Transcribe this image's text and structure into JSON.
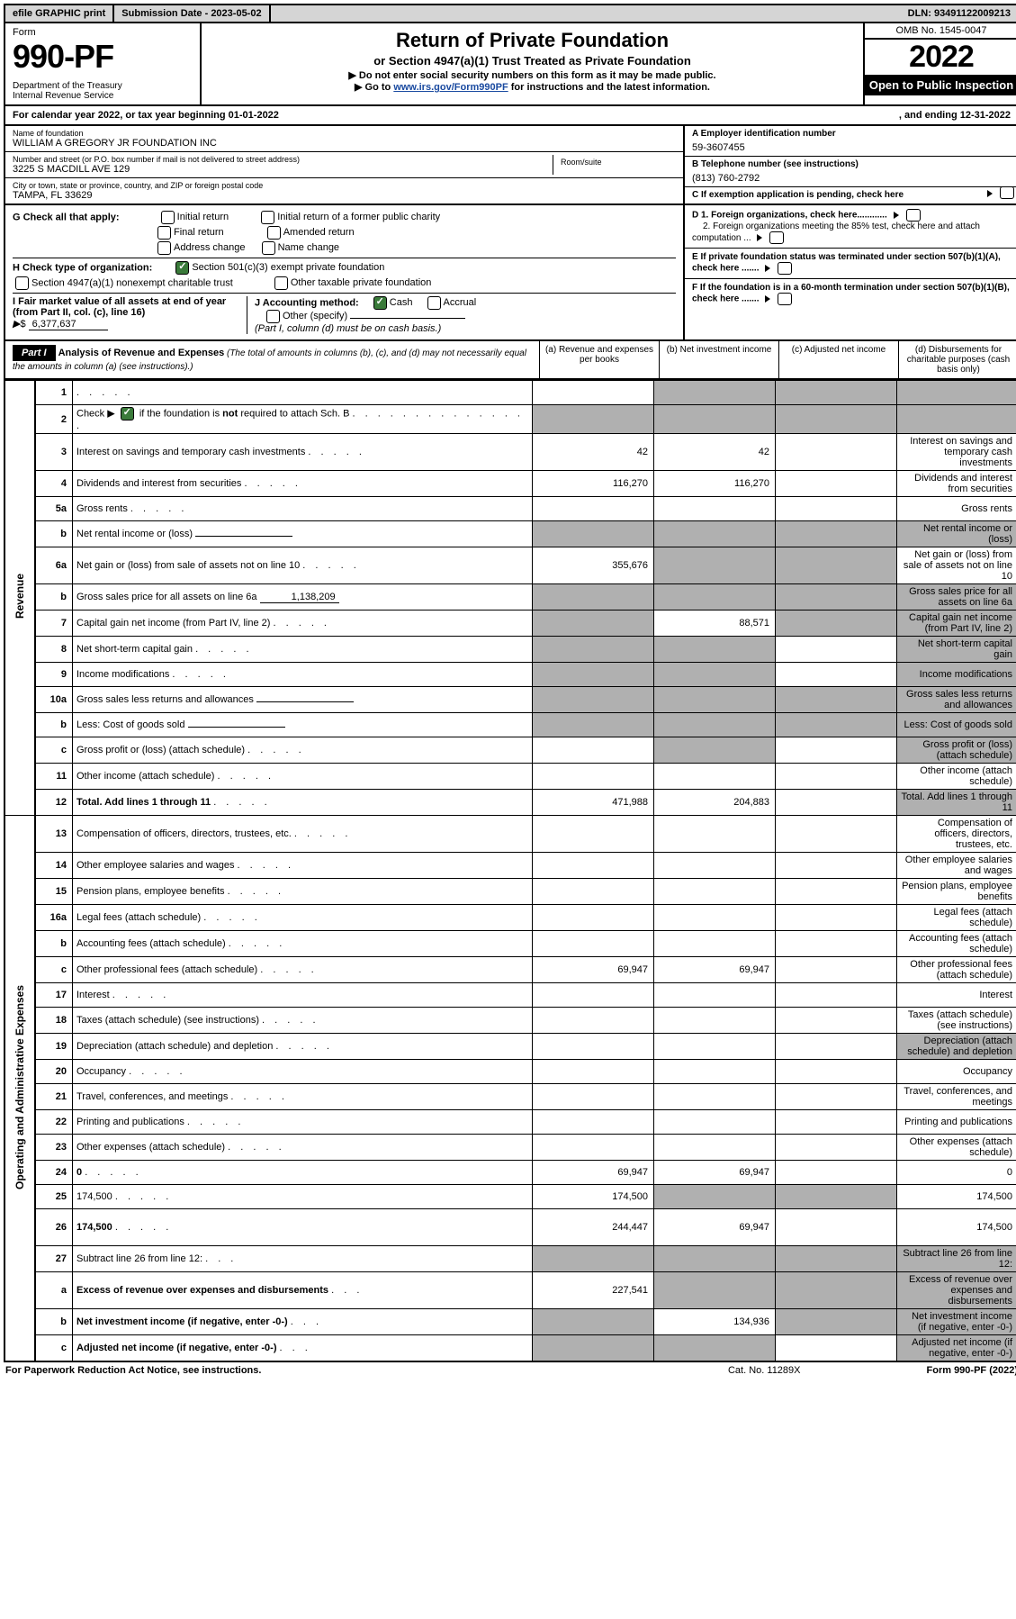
{
  "top": {
    "efile": "efile GRAPHIC print",
    "subdate_label": "Submission Date - 2023-05-02",
    "dln": "DLN: 93491122009213"
  },
  "header": {
    "form": "Form",
    "form_number": "990-PF",
    "dept": "Department of the Treasury\nInternal Revenue Service",
    "title": "Return of Private Foundation",
    "subtitle": "or Section 4947(a)(1) Trust Treated as Private Foundation",
    "note1": "▶ Do not enter social security numbers on this form as it may be made public.",
    "note2_prefix": "▶ Go to ",
    "note2_link": "www.irs.gov/Form990PF",
    "note2_suffix": " for instructions and the latest information.",
    "omb": "OMB No. 1545-0047",
    "year": "2022",
    "inspect": "Open to Public Inspection"
  },
  "calyear": {
    "begin": "For calendar year 2022, or tax year beginning 01-01-2022",
    "end": ", and ending 12-31-2022"
  },
  "entity": {
    "name_label": "Name of foundation",
    "name": "WILLIAM A GREGORY JR FOUNDATION INC",
    "street_label": "Number and street (or P.O. box number if mail is not delivered to street address)",
    "street": "3225 S MACDILL AVE 129",
    "room_label": "Room/suite",
    "city_label": "City or town, state or province, country, and ZIP or foreign postal code",
    "city": "TAMPA, FL  33629",
    "a_label": "A Employer identification number",
    "a": "59-3607455",
    "b_label": "B Telephone number (see instructions)",
    "b": "(813) 760-2792",
    "c_label": "C If exemption application is pending, check here"
  },
  "checks": {
    "G": "G Check all that apply:",
    "G_items": [
      "Initial return",
      "Initial return of a former public charity",
      "Final return",
      "Amended return",
      "Address change",
      "Name change"
    ],
    "H": "H Check type of organization:",
    "H_501c3": "Section 501(c)(3) exempt private foundation",
    "H_4947": "Section 4947(a)(1) nonexempt charitable trust",
    "H_other": "Other taxable private foundation",
    "I_label": "I Fair market value of all assets at end of year (from Part II, col. (c), line 16)",
    "I_val": "6,377,637",
    "J": "J Accounting method:",
    "J_cash": "Cash",
    "J_accrual": "Accrual",
    "J_other": "Other (specify)",
    "J_note": "(Part I, column (d) must be on cash basis.)",
    "D1": "D 1. Foreign organizations, check here............",
    "D2": "2. Foreign organizations meeting the 85% test, check here and attach computation ...",
    "E": "E  If private foundation status was terminated under section 507(b)(1)(A), check here .......",
    "F": "F  If the foundation is in a 60-month termination under section 507(b)(1)(B), check here ......."
  },
  "part1": {
    "label": "Part I",
    "title": "Analysis of Revenue and Expenses",
    "italic": " (The total of amounts in columns (b), (c), and (d) may not necessarily equal the amounts in column (a) (see instructions).)",
    "col_a": "(a)  Revenue and expenses per books",
    "col_b": "(b)  Net investment income",
    "col_c": "(c)  Adjusted net income",
    "col_d": "(d)  Disbursements for charitable purposes (cash basis only)"
  },
  "side_revenue": "Revenue",
  "side_expenses": "Operating and Administrative Expenses",
  "rows": [
    {
      "n": "1",
      "d": "",
      "a": "",
      "b": "",
      "c": "",
      "dshade": true,
      "cshade": true,
      "bshade": true
    },
    {
      "n": "2",
      "d": "",
      "a": "",
      "b": "",
      "c": "",
      "ashade": true,
      "bshade": true,
      "cshade": true,
      "dshade": true,
      "isCheck": true
    },
    {
      "n": "3",
      "d": "Interest on savings and temporary cash investments",
      "a": "42",
      "b": "42"
    },
    {
      "n": "4",
      "d": "Dividends and interest from securities",
      "a": "116,270",
      "b": "116,270"
    },
    {
      "n": "5a",
      "d": "Gross rents"
    },
    {
      "n": "b",
      "d": "Net rental income or (loss)",
      "ashade": true,
      "bshade": true,
      "cshade": true,
      "dshade": true,
      "inline": true
    },
    {
      "n": "6a",
      "d": "Net gain or (loss) from sale of assets not on line 10",
      "a": "355,676",
      "bshade": true,
      "cshade": true
    },
    {
      "n": "b",
      "d": "Gross sales price for all assets on line 6a",
      "inline_val": "1,138,209",
      "ashade": true,
      "bshade": true,
      "cshade": true,
      "dshade": true
    },
    {
      "n": "7",
      "d": "Capital gain net income (from Part IV, line 2)",
      "ashade": true,
      "b": "88,571",
      "cshade": true,
      "dshade": true
    },
    {
      "n": "8",
      "d": "Net short-term capital gain",
      "ashade": true,
      "bshade": true,
      "dshade": true
    },
    {
      "n": "9",
      "d": "Income modifications",
      "ashade": true,
      "bshade": true,
      "dshade": true
    },
    {
      "n": "10a",
      "d": "Gross sales less returns and allowances",
      "ashade": true,
      "bshade": true,
      "cshade": true,
      "dshade": true,
      "inline": true
    },
    {
      "n": "b",
      "d": "Less: Cost of goods sold",
      "ashade": true,
      "bshade": true,
      "cshade": true,
      "dshade": true,
      "inline": true
    },
    {
      "n": "c",
      "d": "Gross profit or (loss) (attach schedule)",
      "bshade": true,
      "dshade": true
    },
    {
      "n": "11",
      "d": "Other income (attach schedule)"
    },
    {
      "n": "12",
      "d": "Total. Add lines 1 through 11",
      "bold": true,
      "a": "471,988",
      "b": "204,883",
      "dshade": true
    }
  ],
  "exp_rows": [
    {
      "n": "13",
      "d": "Compensation of officers, directors, trustees, etc."
    },
    {
      "n": "14",
      "d": "Other employee salaries and wages"
    },
    {
      "n": "15",
      "d": "Pension plans, employee benefits"
    },
    {
      "n": "16a",
      "d": "Legal fees (attach schedule)"
    },
    {
      "n": "b",
      "d": "Accounting fees (attach schedule)"
    },
    {
      "n": "c",
      "d": "Other professional fees (attach schedule)",
      "a": "69,947",
      "b": "69,947"
    },
    {
      "n": "17",
      "d": "Interest"
    },
    {
      "n": "18",
      "d": "Taxes (attach schedule) (see instructions)"
    },
    {
      "n": "19",
      "d": "Depreciation (attach schedule) and depletion",
      "dshade": true
    },
    {
      "n": "20",
      "d": "Occupancy"
    },
    {
      "n": "21",
      "d": "Travel, conferences, and meetings"
    },
    {
      "n": "22",
      "d": "Printing and publications"
    },
    {
      "n": "23",
      "d": "Other expenses (attach schedule)"
    },
    {
      "n": "24",
      "d": "0",
      "bold": true,
      "a": "69,947",
      "b": "69,947"
    },
    {
      "n": "25",
      "d": "174,500",
      "a": "174,500",
      "bshade": true,
      "cshade": true
    },
    {
      "n": "26",
      "d": "174,500",
      "bold": true,
      "a": "244,447",
      "b": "69,947",
      "tall": true
    }
  ],
  "net_rows": [
    {
      "n": "27",
      "d": "Subtract line 26 from line 12:",
      "ashade": true,
      "bshade": true,
      "cshade": true,
      "dshade": true
    },
    {
      "n": "a",
      "d": "Excess of revenue over expenses and disbursements",
      "bold": true,
      "a": "227,541",
      "bshade": true,
      "cshade": true,
      "dshade": true
    },
    {
      "n": "b",
      "d": "Net investment income (if negative, enter -0-)",
      "bold": true,
      "ashade": true,
      "b": "134,936",
      "cshade": true,
      "dshade": true
    },
    {
      "n": "c",
      "d": "Adjusted net income (if negative, enter -0-)",
      "bold": true,
      "ashade": true,
      "bshade": true,
      "dshade": true
    }
  ],
  "footer": {
    "left": "For Paperwork Reduction Act Notice, see instructions.",
    "mid": "Cat. No. 11289X",
    "right": "Form 990-PF (2022)"
  },
  "colors": {
    "shade": "#b0b0b0",
    "topbar": "#d5d5d5",
    "link": "#1a4aa0",
    "check": "#3a7a3a"
  }
}
